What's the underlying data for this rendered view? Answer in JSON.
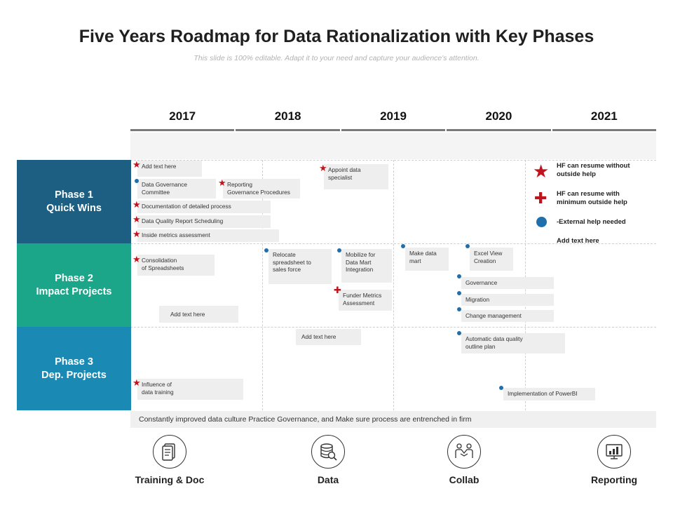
{
  "title": "Five Years Roadmap for Data Rationalization with Key Phases",
  "subtitle": "This slide is 100% editable. Adapt it to your need and capture your audience's attention.",
  "years": [
    "2017",
    "2018",
    "2019",
    "2020",
    "2021"
  ],
  "phases": [
    {
      "line1": "Phase 1",
      "line2": "Quick Wins"
    },
    {
      "line1": "Phase 2",
      "line2": "Impact Projects"
    },
    {
      "line1": "Phase 3",
      "line2": "Dep. Projects"
    }
  ],
  "cards": [
    {
      "text": "Add text here",
      "marker": "star"
    },
    {
      "text": "Data Governance\nCommittee",
      "marker": "dot"
    },
    {
      "text": "Reporting\nGovernance Procedures",
      "marker": "star"
    },
    {
      "text": "Documentation of detailed process",
      "marker": "star"
    },
    {
      "text": "Data Quality Report Scheduling",
      "marker": "star"
    },
    {
      "text": "Inside metrics assessment",
      "marker": "star"
    },
    {
      "text": "Appoint data\nspecialist",
      "marker": "star"
    },
    {
      "text": "Consolidation\nof Spreadsheets",
      "marker": "star"
    },
    {
      "text": "Relocate\nspreadsheet to\nsales force",
      "marker": "dot"
    },
    {
      "text": "Mobilize  for\nData Mart\nIntegration",
      "marker": "dot"
    },
    {
      "text": "Funder Metrics\nAssessment",
      "marker": "plus"
    },
    {
      "text": "Make data\nmart",
      "marker": "dot"
    },
    {
      "text": "Excel View\nCreation",
      "marker": "dot"
    },
    {
      "text": "Governance",
      "marker": "dot"
    },
    {
      "text": "Migration",
      "marker": "dot"
    },
    {
      "text": "Change management",
      "marker": "dot"
    },
    {
      "text": "Add text here",
      "marker": "none"
    },
    {
      "text": "Add text here",
      "marker": "none"
    },
    {
      "text": "Automatic data quality\noutline plan",
      "marker": "dot"
    },
    {
      "text": "Influence of\ndata training",
      "marker": "star"
    },
    {
      "text": "Implementation of PowerBI",
      "marker": "dot"
    }
  ],
  "legend": [
    {
      "marker": "star",
      "text": "HF can resume without\noutside help"
    },
    {
      "marker": "plus",
      "text": "HF can resume with\nminimum outside help"
    },
    {
      "marker": "dot",
      "text": "-External help needed"
    },
    {
      "marker": "none",
      "text": "Add text here"
    }
  ],
  "bottom_note": "Constantly improved data culture Practice Governance, and Make sure process are entrenched in firm",
  "footer": [
    {
      "label": "Training & Doc",
      "icon": "document-icon"
    },
    {
      "label": "Data",
      "icon": "database-icon"
    },
    {
      "label": "Collab",
      "icon": "handshake-icon"
    },
    {
      "label": "Reporting",
      "icon": "chart-icon"
    }
  ],
  "colors": {
    "phase1": "#1d5f83",
    "phase2": "#1ba68a",
    "phase3": "#1a8ab5",
    "star": "#c0141d",
    "dot": "#1f6fad",
    "card_bg": "#eeeeee"
  }
}
